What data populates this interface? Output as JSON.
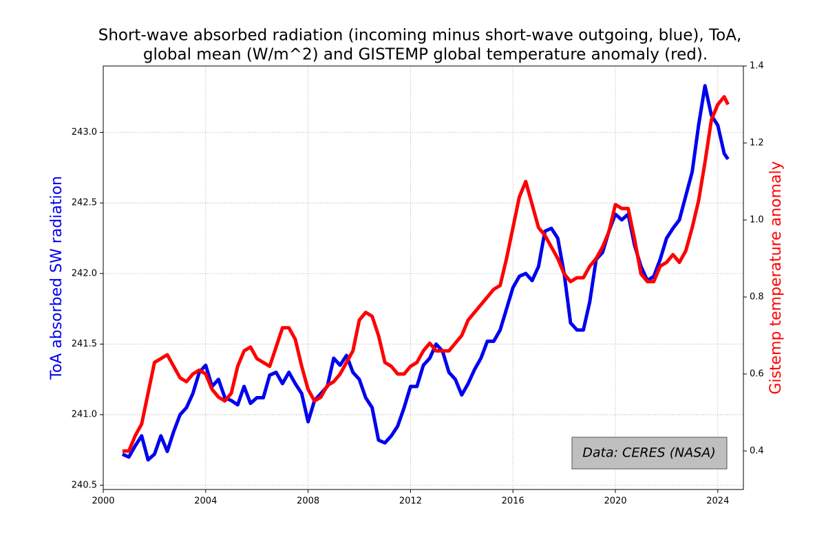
{
  "chart_data": {
    "type": "line",
    "title": [
      "Short-wave absorbed radiation (incoming minus short-wave outgoing, blue), ToA,",
      "global mean (W/m^2) and GISTEMP global temperature anomaly (red)."
    ],
    "ylabel": "ToA absorbed SW radiation",
    "y2label": "Gistemp temperature anomaly",
    "annotation": "Data: CERES (NASA)",
    "grid": true,
    "xlim": [
      2000,
      2025
    ],
    "xticks": [
      2000,
      2004,
      2008,
      2012,
      2016,
      2020,
      2024
    ],
    "ylim": [
      240.47,
      243.47
    ],
    "yticks": [
      240.5,
      {
        "value": 241.0,
        "label": "241.0"
      },
      241.5,
      {
        "value": 242.0,
        "label": "242.0"
      },
      242.5,
      {
        "value": 243.0,
        "label": "243.0"
      }
    ],
    "y2lim": [
      0.3,
      1.4
    ],
    "y2ticks": [
      0.4,
      0.6,
      0.8,
      {
        "value": 1.0,
        "label": "1.0"
      },
      1.2,
      1.4
    ],
    "x": [
      2000.75,
      2001.0,
      2001.25,
      2001.5,
      2001.75,
      2002.0,
      2002.25,
      2002.5,
      2002.75,
      2003.0,
      2003.25,
      2003.5,
      2003.75,
      2004.0,
      2004.25,
      2004.5,
      2004.75,
      2005.0,
      2005.25,
      2005.5,
      2005.75,
      2006.0,
      2006.25,
      2006.5,
      2006.75,
      2007.0,
      2007.25,
      2007.5,
      2007.75,
      2008.0,
      2008.25,
      2008.5,
      2008.75,
      2009.0,
      2009.25,
      2009.5,
      2009.75,
      2010.0,
      2010.25,
      2010.5,
      2010.75,
      2011.0,
      2011.25,
      2011.5,
      2011.75,
      2012.0,
      2012.25,
      2012.5,
      2012.75,
      2013.0,
      2013.25,
      2013.5,
      2013.75,
      2014.0,
      2014.25,
      2014.5,
      2014.75,
      2015.0,
      2015.25,
      2015.5,
      2015.75,
      2016.0,
      2016.25,
      2016.5,
      2016.75,
      2017.0,
      2017.25,
      2017.5,
      2017.75,
      2018.0,
      2018.25,
      2018.5,
      2018.75,
      2019.0,
      2019.25,
      2019.5,
      2019.75,
      2020.0,
      2020.25,
      2020.5,
      2020.75,
      2021.0,
      2021.25,
      2021.5,
      2021.75,
      2022.0,
      2022.25,
      2022.5,
      2022.75,
      2023.0,
      2023.25,
      2023.5,
      2023.75,
      2024.0,
      2024.25,
      2024.4
    ],
    "series": [
      {
        "color": "#0000ee",
        "axis": "y",
        "values": [
          240.72,
          240.7,
          240.78,
          240.85,
          240.68,
          240.72,
          240.85,
          240.74,
          240.88,
          241.0,
          241.05,
          241.15,
          241.3,
          241.35,
          241.2,
          241.25,
          241.12,
          241.1,
          241.07,
          241.2,
          241.08,
          241.12,
          241.12,
          241.28,
          241.3,
          241.22,
          241.3,
          241.22,
          241.15,
          240.95,
          241.1,
          241.15,
          241.2,
          241.4,
          241.35,
          241.42,
          241.3,
          241.25,
          241.12,
          241.05,
          240.82,
          240.8,
          240.85,
          240.92,
          241.05,
          241.2,
          241.2,
          241.35,
          241.4,
          241.5,
          241.45,
          241.3,
          241.25,
          241.14,
          241.22,
          241.32,
          241.4,
          241.52,
          241.52,
          241.6,
          241.75,
          241.9,
          241.98,
          242.0,
          241.95,
          242.05,
          242.3,
          242.32,
          242.25,
          242.0,
          241.65,
          241.6,
          241.6,
          241.8,
          242.1,
          242.15,
          242.3,
          242.42,
          242.38,
          242.42,
          242.2,
          242.05,
          241.95,
          241.98,
          242.1,
          242.25,
          242.32,
          242.38,
          242.55,
          242.72,
          243.05,
          243.33,
          243.12,
          243.05,
          242.85,
          242.81
        ]
      },
      {
        "color": "#ff0000",
        "axis": "y2",
        "values": [
          0.4,
          0.4,
          0.44,
          0.47,
          0.55,
          0.63,
          0.64,
          0.65,
          0.62,
          0.59,
          0.58,
          0.6,
          0.61,
          0.6,
          0.56,
          0.54,
          0.53,
          0.55,
          0.62,
          0.66,
          0.67,
          0.64,
          0.63,
          0.62,
          0.67,
          0.72,
          0.72,
          0.69,
          0.62,
          0.56,
          0.53,
          0.54,
          0.57,
          0.58,
          0.6,
          0.63,
          0.66,
          0.74,
          0.76,
          0.75,
          0.7,
          0.63,
          0.62,
          0.6,
          0.6,
          0.62,
          0.63,
          0.66,
          0.68,
          0.66,
          0.66,
          0.66,
          0.68,
          0.7,
          0.74,
          0.76,
          0.78,
          0.8,
          0.82,
          0.83,
          0.9,
          0.98,
          1.06,
          1.1,
          1.04,
          0.98,
          0.96,
          0.93,
          0.9,
          0.86,
          0.84,
          0.85,
          0.85,
          0.88,
          0.9,
          0.93,
          0.97,
          1.04,
          1.03,
          1.03,
          0.95,
          0.86,
          0.84,
          0.84,
          0.88,
          0.89,
          0.91,
          0.89,
          0.92,
          0.98,
          1.05,
          1.15,
          1.26,
          1.3,
          1.32,
          1.3
        ]
      }
    ]
  }
}
